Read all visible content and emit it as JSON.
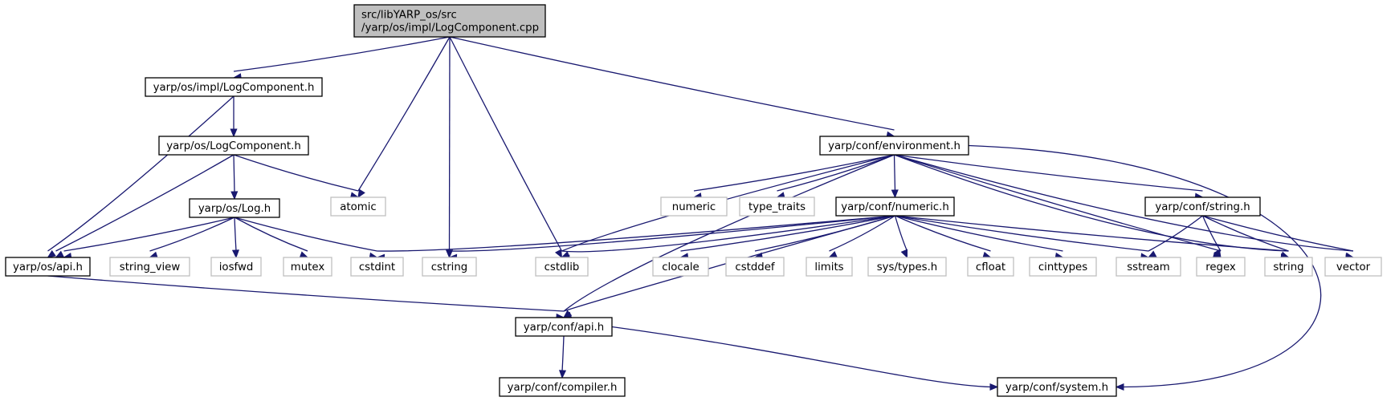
{
  "nodes": [
    {
      "id": "root",
      "lines": [
        "src/libYARP_os/src",
        "/yarp/os/impl/LogComponent.cpp"
      ],
      "kind": "root"
    },
    {
      "id": "impl_logcomp",
      "lines": [
        "yarp/os/impl/LogComponent.h"
      ],
      "kind": "documented"
    },
    {
      "id": "os_logcomp",
      "lines": [
        "yarp/os/LogComponent.h"
      ],
      "kind": "documented"
    },
    {
      "id": "os_log",
      "lines": [
        "yarp/os/Log.h"
      ],
      "kind": "documented"
    },
    {
      "id": "os_api",
      "lines": [
        "yarp/os/api.h"
      ],
      "kind": "documented"
    },
    {
      "id": "atomic",
      "lines": [
        "atomic"
      ],
      "kind": "external"
    },
    {
      "id": "string_view",
      "lines": [
        "string_view"
      ],
      "kind": "external"
    },
    {
      "id": "iosfwd",
      "lines": [
        "iosfwd"
      ],
      "kind": "external"
    },
    {
      "id": "mutex",
      "lines": [
        "mutex"
      ],
      "kind": "external"
    },
    {
      "id": "cstdint",
      "lines": [
        "cstdint"
      ],
      "kind": "external"
    },
    {
      "id": "cstring",
      "lines": [
        "cstring"
      ],
      "kind": "external"
    },
    {
      "id": "cstdlib",
      "lines": [
        "cstdlib"
      ],
      "kind": "external"
    },
    {
      "id": "env",
      "lines": [
        "yarp/conf/environment.h"
      ],
      "kind": "documented"
    },
    {
      "id": "numeric",
      "lines": [
        "numeric"
      ],
      "kind": "external"
    },
    {
      "id": "type_traits",
      "lines": [
        "type_traits"
      ],
      "kind": "external"
    },
    {
      "id": "conf_numeric",
      "lines": [
        "yarp/conf/numeric.h"
      ],
      "kind": "documented"
    },
    {
      "id": "conf_string",
      "lines": [
        "yarp/conf/string.h"
      ],
      "kind": "documented"
    },
    {
      "id": "clocale",
      "lines": [
        "clocale"
      ],
      "kind": "external"
    },
    {
      "id": "cstddef",
      "lines": [
        "cstddef"
      ],
      "kind": "external"
    },
    {
      "id": "limits",
      "lines": [
        "limits"
      ],
      "kind": "external"
    },
    {
      "id": "sys_types",
      "lines": [
        "sys/types.h"
      ],
      "kind": "external"
    },
    {
      "id": "cfloat",
      "lines": [
        "cfloat"
      ],
      "kind": "external"
    },
    {
      "id": "cinttypes",
      "lines": [
        "cinttypes"
      ],
      "kind": "external"
    },
    {
      "id": "sstream",
      "lines": [
        "sstream"
      ],
      "kind": "external"
    },
    {
      "id": "regex",
      "lines": [
        "regex"
      ],
      "kind": "external"
    },
    {
      "id": "string",
      "lines": [
        "string"
      ],
      "kind": "external"
    },
    {
      "id": "vector",
      "lines": [
        "vector"
      ],
      "kind": "external"
    },
    {
      "id": "conf_api",
      "lines": [
        "yarp/conf/api.h"
      ],
      "kind": "documented"
    },
    {
      "id": "conf_compiler",
      "lines": [
        "yarp/conf/compiler.h"
      ],
      "kind": "documented"
    },
    {
      "id": "conf_system",
      "lines": [
        "yarp/conf/system.h"
      ],
      "kind": "documented"
    }
  ],
  "edges": [
    [
      "root",
      "impl_logcomp"
    ],
    [
      "root",
      "atomic"
    ],
    [
      "root",
      "cstring"
    ],
    [
      "root",
      "cstdlib"
    ],
    [
      "root",
      "env"
    ],
    [
      "impl_logcomp",
      "os_logcomp"
    ],
    [
      "impl_logcomp",
      "os_api"
    ],
    [
      "os_logcomp",
      "os_log"
    ],
    [
      "os_logcomp",
      "os_api"
    ],
    [
      "os_logcomp",
      "atomic"
    ],
    [
      "os_log",
      "os_api"
    ],
    [
      "os_log",
      "string_view"
    ],
    [
      "os_log",
      "iosfwd"
    ],
    [
      "os_log",
      "mutex"
    ],
    [
      "os_log",
      "cstdint"
    ],
    [
      "os_api",
      "conf_api"
    ],
    [
      "env",
      "conf_api"
    ],
    [
      "env",
      "cstdlib"
    ],
    [
      "env",
      "numeric"
    ],
    [
      "env",
      "type_traits"
    ],
    [
      "env",
      "conf_numeric"
    ],
    [
      "env",
      "conf_string"
    ],
    [
      "env",
      "regex"
    ],
    [
      "env",
      "string"
    ],
    [
      "env",
      "vector"
    ],
    [
      "env",
      "conf_system"
    ],
    [
      "conf_numeric",
      "cstdint"
    ],
    [
      "conf_numeric",
      "cstring"
    ],
    [
      "conf_numeric",
      "cstdlib"
    ],
    [
      "conf_numeric",
      "conf_api"
    ],
    [
      "conf_numeric",
      "clocale"
    ],
    [
      "conf_numeric",
      "cstddef"
    ],
    [
      "conf_numeric",
      "limits"
    ],
    [
      "conf_numeric",
      "sys_types"
    ],
    [
      "conf_numeric",
      "cfloat"
    ],
    [
      "conf_numeric",
      "cinttypes"
    ],
    [
      "conf_numeric",
      "sstream"
    ],
    [
      "conf_numeric",
      "string"
    ],
    [
      "conf_string",
      "sstream"
    ],
    [
      "conf_string",
      "regex"
    ],
    [
      "conf_string",
      "string"
    ],
    [
      "conf_string",
      "vector"
    ],
    [
      "conf_api",
      "conf_compiler"
    ],
    [
      "conf_api",
      "conf_system"
    ]
  ],
  "colors": {
    "edge": "#191970",
    "root_fill": "#bfbfbf",
    "documented_border": "#000000",
    "external_border": "#bfbfbf"
  }
}
